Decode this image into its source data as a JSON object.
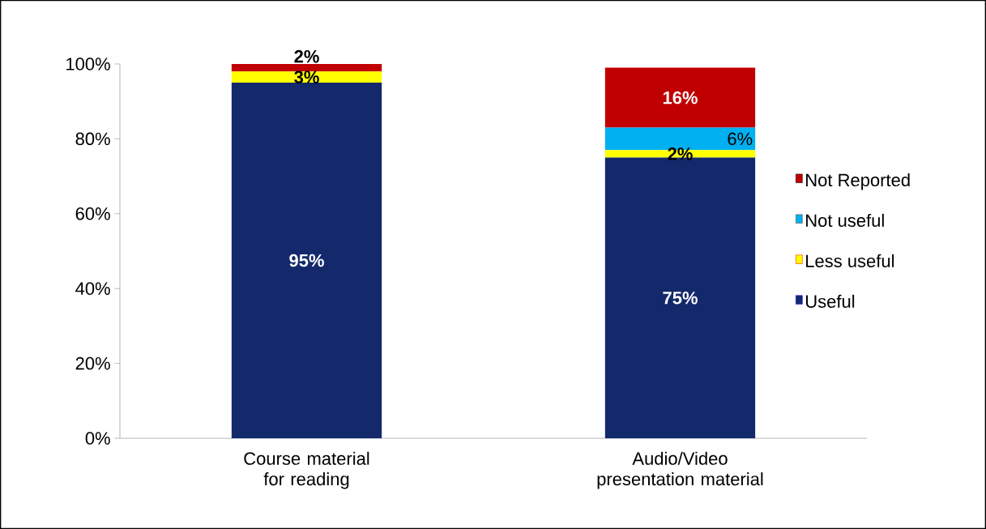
{
  "chart_data": {
    "type": "bar",
    "stacked": true,
    "categories": [
      "Course material for reading",
      "Audio/Video presentation material"
    ],
    "series": [
      {
        "name": "Useful",
        "color": "#13296b",
        "values": [
          95,
          75
        ],
        "value_labels": [
          "95%",
          "75%"
        ]
      },
      {
        "name": "Less useful",
        "color": "#ffff00",
        "values": [
          3,
          2
        ],
        "value_labels": [
          "3%",
          "2%"
        ]
      },
      {
        "name": "Not useful",
        "color": "#00b0f0",
        "values": [
          0,
          6
        ],
        "value_labels": [
          null,
          "6%"
        ]
      },
      {
        "name": "Not Reported",
        "color": "#c00000",
        "values": [
          2,
          16
        ],
        "value_labels": [
          "2%",
          "16%"
        ]
      }
    ],
    "ylim": [
      0,
      100
    ],
    "yticks": [
      {
        "value": 0,
        "label": "0%"
      },
      {
        "value": 20,
        "label": "20%"
      },
      {
        "value": 40,
        "label": "40%"
      },
      {
        "value": 60,
        "label": "60%"
      },
      {
        "value": 80,
        "label": "80%"
      },
      {
        "value": 100,
        "label": "100%"
      }
    ],
    "grid": false,
    "legend": "right"
  }
}
